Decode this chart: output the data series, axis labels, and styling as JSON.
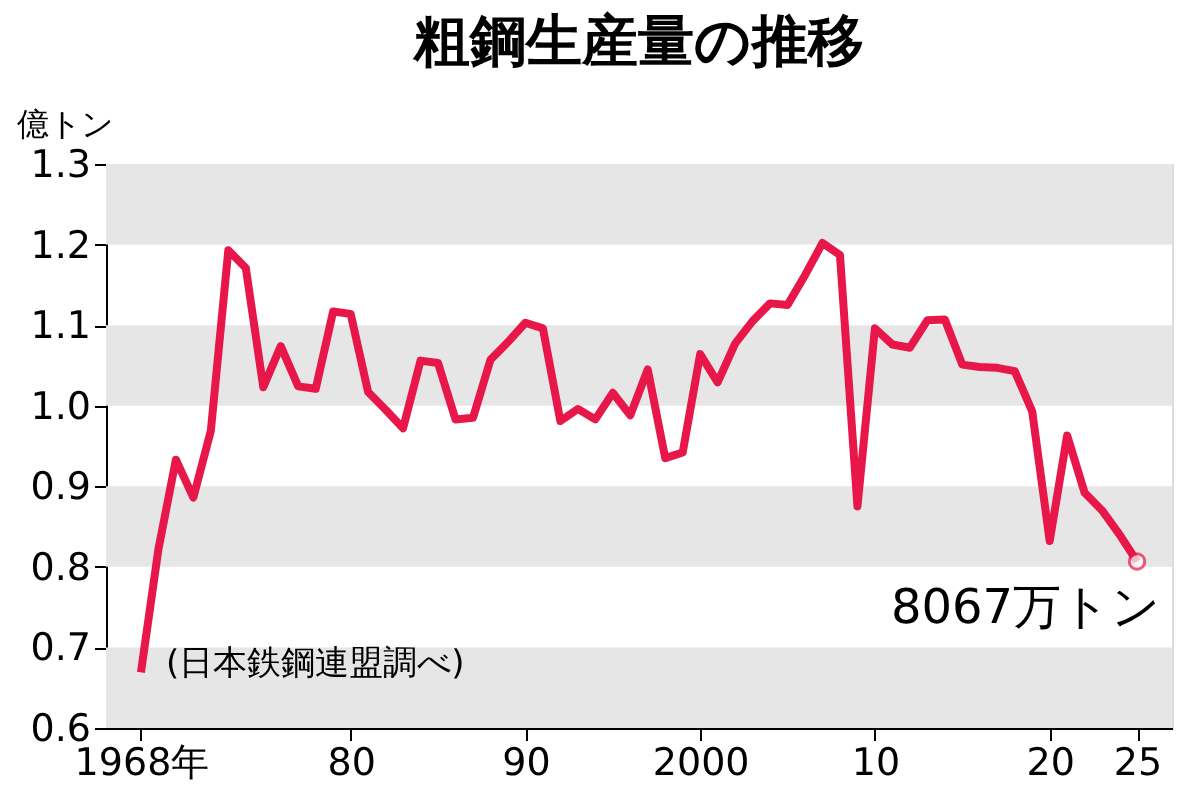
{
  "chart_data": {
    "type": "line",
    "title": "粗鋼生産量の推移",
    "ylabel": "億トン",
    "x": [
      1968,
      1969,
      1970,
      1971,
      1972,
      1973,
      1974,
      1975,
      1976,
      1977,
      1978,
      1979,
      1980,
      1981,
      1982,
      1983,
      1984,
      1985,
      1986,
      1987,
      1988,
      1989,
      1990,
      1991,
      1992,
      1993,
      1994,
      1995,
      1996,
      1997,
      1998,
      1999,
      2000,
      2001,
      2002,
      2003,
      2004,
      2005,
      2006,
      2007,
      2008,
      2009,
      2010,
      2011,
      2012,
      2013,
      2014,
      2015,
      2016,
      2017,
      2018,
      2019,
      2020,
      2021,
      2022,
      2023,
      2024,
      2025
    ],
    "series": [
      {
        "color": "#e8174a",
        "values": [
          0.669,
          0.822,
          0.933,
          0.886,
          0.969,
          1.193,
          1.171,
          1.023,
          1.074,
          1.024,
          1.021,
          1.117,
          1.114,
          1.017,
          0.995,
          0.972,
          1.056,
          1.053,
          0.983,
          0.985,
          1.057,
          1.079,
          1.103,
          1.096,
          0.981,
          0.996,
          0.983,
          1.016,
          0.988,
          1.045,
          0.935,
          0.942,
          1.064,
          1.029,
          1.077,
          1.105,
          1.127,
          1.125,
          1.162,
          1.202,
          1.187,
          0.875,
          1.096,
          1.076,
          1.072,
          1.106,
          1.107,
          1.051,
          1.048,
          1.047,
          1.043,
          0.993,
          0.832,
          0.963,
          0.892,
          0.87,
          0.84,
          0.8067
        ]
      }
    ],
    "xlim": [
      1966,
      2027
    ],
    "xticks": [
      {
        "value": 1968,
        "label": "1968年"
      },
      {
        "value": 1980,
        "label": "80"
      },
      {
        "value": 1990,
        "label": "90"
      },
      2000,
      {
        "value": 2010,
        "label": "10"
      },
      {
        "value": 2020,
        "label": "20"
      },
      {
        "value": 2025,
        "label": "25"
      }
    ],
    "ylim": [
      0.6,
      1.3
    ],
    "yticks": [
      0.6,
      0.7,
      0.8,
      0.9,
      {
        "value": 1,
        "label": "1.0"
      },
      1.1,
      1.2,
      1.3
    ],
    "bands": [
      {
        "axis": "y",
        "from": 0.6,
        "to": 0.7,
        "color": "#e6e6e6"
      },
      {
        "axis": "y",
        "from": 0.8,
        "to": 0.9,
        "color": "#e6e6e6"
      },
      {
        "axis": "y",
        "from": 1.0,
        "to": 1.1,
        "color": "#e6e6e6"
      },
      {
        "axis": "y",
        "from": 1.2,
        "to": 1.3,
        "color": "#e6e6e6"
      }
    ],
    "annotations": [
      "(日本鉄鋼連盟調べ)",
      {
        "text": "8067万トン",
        "x": 2025,
        "y": 0.8067
      }
    ],
    "marker": "none",
    "line_style": "solid"
  }
}
